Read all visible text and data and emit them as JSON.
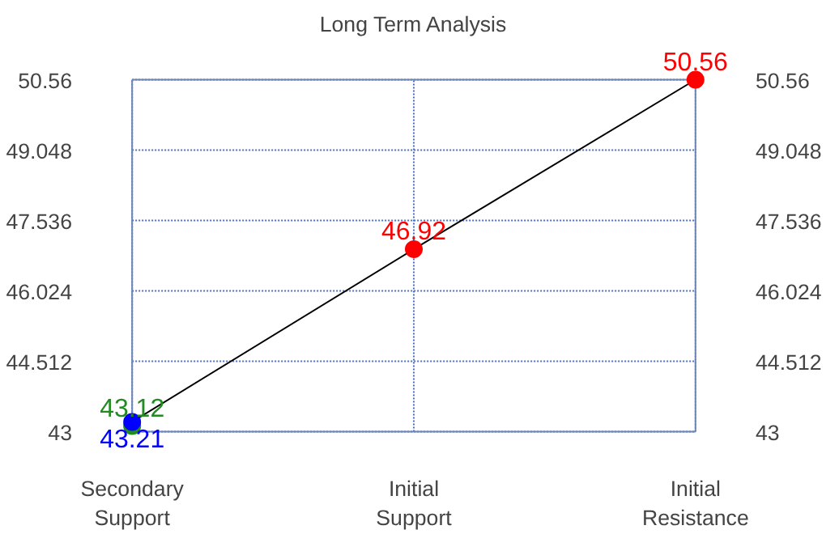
{
  "chart_data": {
    "type": "line",
    "title": "Long Term Analysis",
    "categories": [
      "Secondary Support",
      "Initial Support",
      "Initial Resistance"
    ],
    "series": [
      {
        "color": "#000000",
        "values": [
          43.21,
          46.92,
          50.56
        ],
        "marker": "none"
      },
      {
        "type": "scatter",
        "color": "#228b22",
        "values": [
          43.12,
          null,
          null
        ],
        "value_labels": [
          "43.12",
          null,
          null
        ],
        "marker": "circle"
      },
      {
        "type": "scatter",
        "color": "#0000ff",
        "values": [
          43.21,
          null,
          null
        ],
        "value_labels": [
          "43.21",
          null,
          null
        ],
        "marker": "circle"
      },
      {
        "type": "scatter",
        "color": "#ff0000",
        "values": [
          null,
          46.92,
          50.56
        ],
        "value_labels": [
          null,
          "46.92",
          "50.56"
        ],
        "marker": "circle"
      }
    ],
    "ylim": [
      43,
      50.56
    ],
    "yticks": [
      43,
      44.512,
      46.024,
      47.536,
      49.048,
      50.56
    ],
    "y2lim": [
      43,
      50.56
    ],
    "y2ticks": [
      43,
      44.512,
      46.024,
      47.536,
      49.048,
      50.56
    ],
    "grid": true
  }
}
